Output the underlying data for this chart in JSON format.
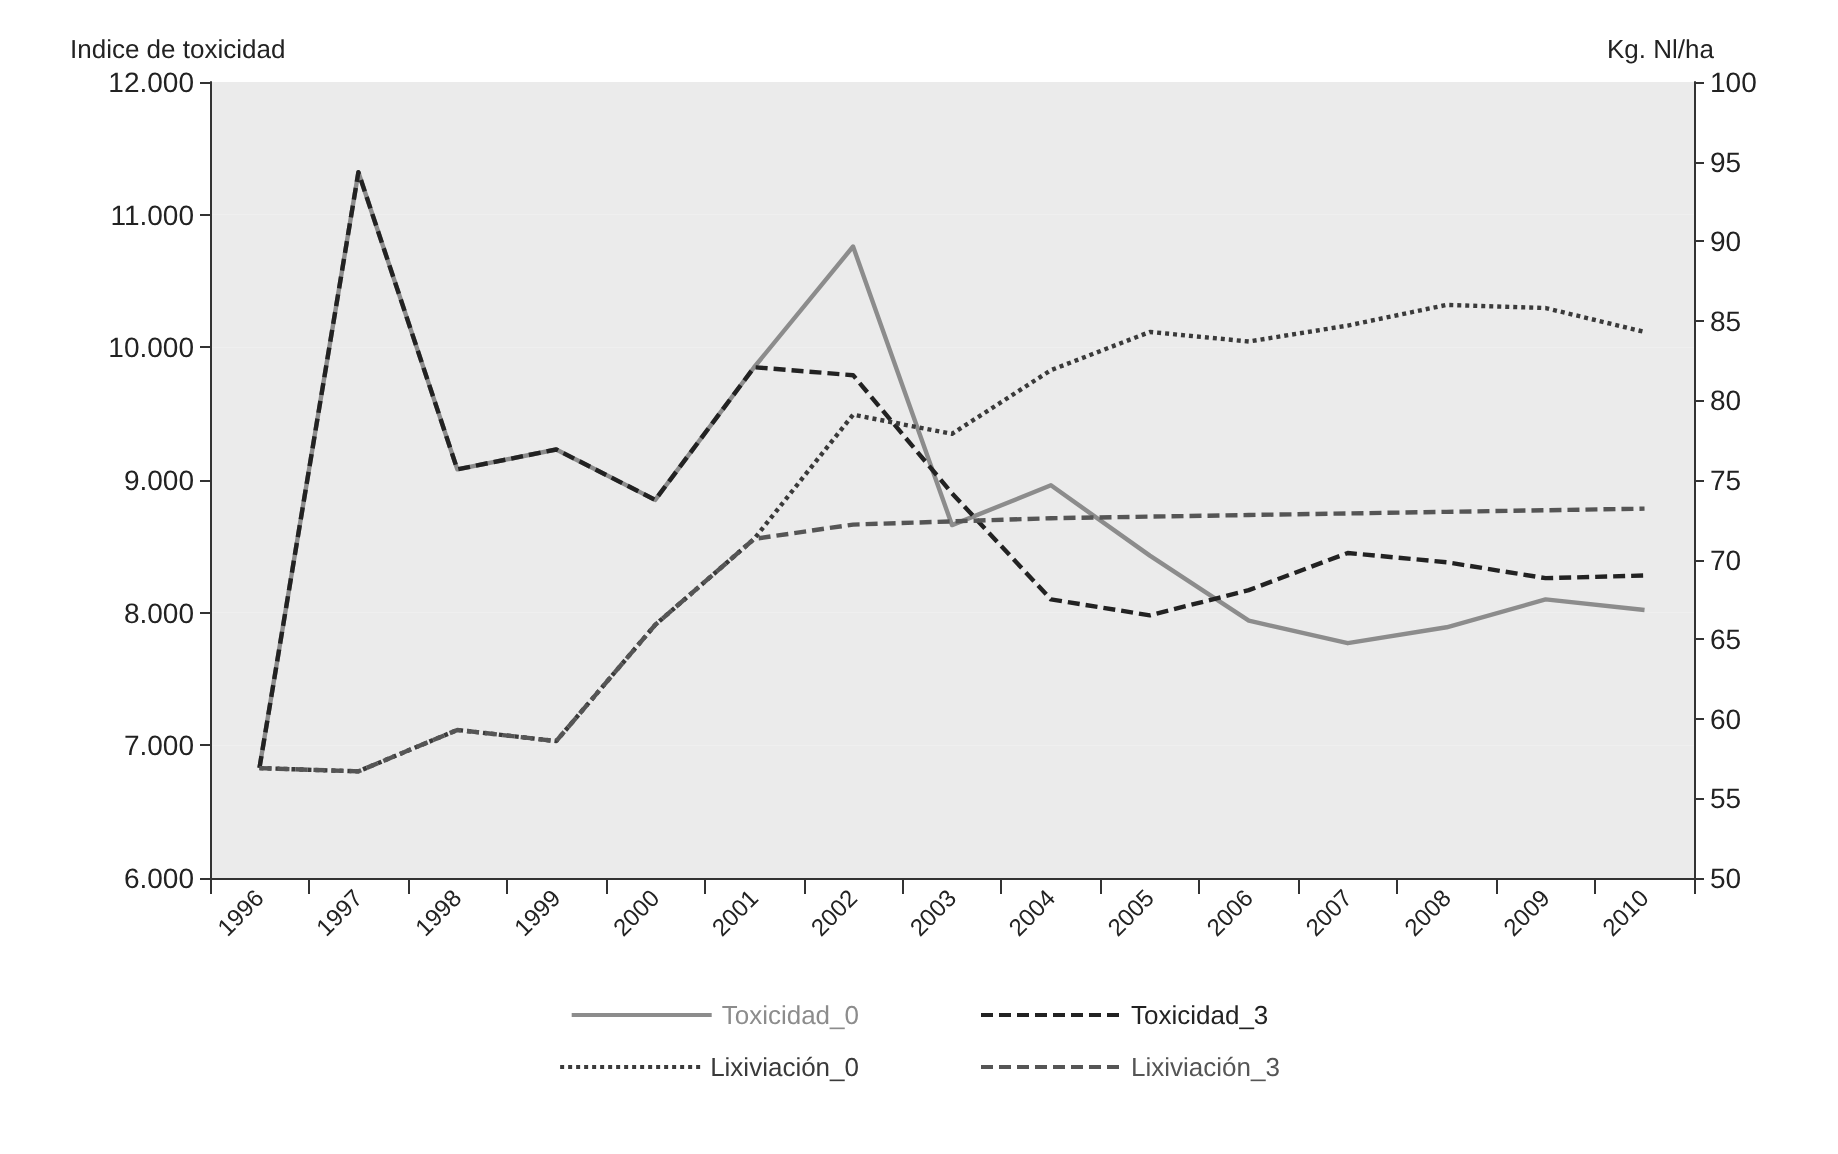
{
  "chart_data": {
    "type": "line",
    "ylabel": "Indice de toxicidad",
    "y2label": "Kg. Nl/ha",
    "categories": [
      "1996",
      "1997",
      "1998",
      "1999",
      "2000",
      "2001",
      "2002",
      "2003",
      "2004",
      "2005",
      "2006",
      "2007",
      "2008",
      "2009",
      "2010"
    ],
    "ylim": [
      6000,
      12000
    ],
    "yticks": [
      {
        "value": 6000,
        "label": "6.000"
      },
      {
        "value": 7000,
        "label": "7.000"
      },
      {
        "value": 8000,
        "label": "8.000"
      },
      {
        "value": 9000,
        "label": "9.000"
      },
      {
        "value": 10000,
        "label": "10.000"
      },
      {
        "value": 11000,
        "label": "11.000"
      },
      {
        "value": 12000,
        "label": "12.000"
      }
    ],
    "y2lim": [
      50,
      100
    ],
    "y2ticks": [
      50,
      55,
      60,
      65,
      70,
      75,
      80,
      85,
      90,
      95,
      100
    ],
    "series": [
      {
        "name": "Toxicidad_0",
        "color": "#8c8c8c",
        "line_style": "solid",
        "values": [
          6830,
          11320,
          9080,
          9230,
          8850,
          9850,
          10760,
          8660,
          8960,
          8430,
          7940,
          7770,
          7890,
          8100,
          8020
        ]
      },
      {
        "name": "Toxicidad_3",
        "color": "#222222",
        "line_style": "dashed",
        "values": [
          6830,
          11320,
          9080,
          9230,
          8850,
          9850,
          9790,
          8900,
          8100,
          7980,
          8170,
          8450,
          8380,
          8260,
          8280
        ]
      },
      {
        "name": "Lixiviación_0",
        "color": "#3a3a3a",
        "line_style": "dotted",
        "axis": "y2",
        "values": [
          56.9,
          56.7,
          59.3,
          58.6,
          65.9,
          71.3,
          79.1,
          77.9,
          81.9,
          84.3,
          83.7,
          84.7,
          86.0,
          85.8,
          84.3
        ]
      },
      {
        "name": "Lixiviación_3",
        "color": "#555555",
        "line_style": "dashed",
        "axis": "y2",
        "values": [
          56.9,
          56.7,
          59.3,
          58.6,
          65.9,
          71.3,
          72.2,
          72.4,
          72.6,
          72.7,
          72.8,
          72.9,
          73.0,
          73.1,
          73.2
        ]
      }
    ],
    "grid": false,
    "legend": "bottom",
    "marker": "none"
  }
}
